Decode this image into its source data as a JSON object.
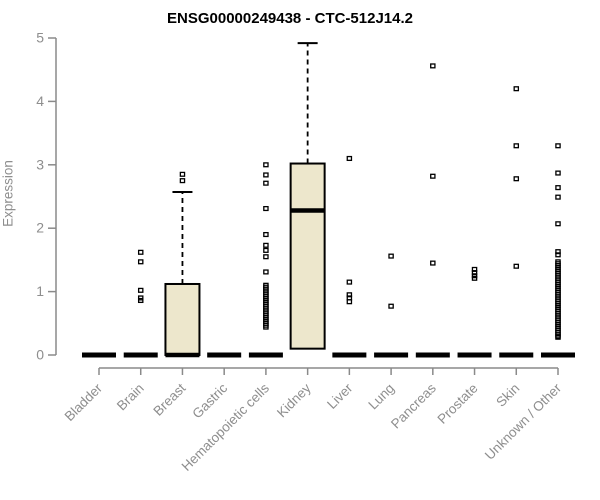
{
  "chart_data": {
    "type": "boxplot",
    "title": "ENSG00000249438 - CTC-512J14.2",
    "xlabel": "",
    "ylabel": "Expression",
    "ylim": [
      0,
      5
    ],
    "yticks": [
      0,
      1,
      2,
      3,
      4,
      5
    ],
    "grid": false,
    "legend": "none",
    "marker": "open-square",
    "colors": {
      "box_fill": "#EDE7CC",
      "box_stroke": "#000000",
      "median": "#000000",
      "outlier": "#000000",
      "axis": "#8a8a8a",
      "tick_label": "#8e8e8e",
      "title": "#000000",
      "background": "#ffffff"
    },
    "categories": [
      {
        "label": "Bladder",
        "q1": 0,
        "median": 0,
        "q3": 0,
        "whisker_low": 0,
        "whisker_high": 0,
        "outliers": []
      },
      {
        "label": "Brain",
        "q1": 0,
        "median": 0,
        "q3": 0,
        "whisker_low": 0,
        "whisker_high": 0,
        "outliers": [
          1.62,
          1.47,
          1.02,
          0.9,
          0.86
        ]
      },
      {
        "label": "Breast",
        "q1": 0,
        "median": 0,
        "q3": 1.12,
        "whisker_low": 0,
        "whisker_high": 2.57,
        "outliers": [
          2.85,
          2.75
        ]
      },
      {
        "label": "Gastric",
        "q1": 0,
        "median": 0,
        "q3": 0,
        "whisker_low": 0,
        "whisker_high": 0,
        "outliers": []
      },
      {
        "label": "Hematopoietic cells",
        "q1": 0,
        "median": 0,
        "q3": 0,
        "whisker_low": 0,
        "whisker_high": 0,
        "outliers": [
          3.0,
          2.84,
          2.71,
          2.31,
          1.9,
          1.73,
          1.65,
          1.55,
          1.31,
          1.1,
          1.07,
          1.04,
          1.01,
          0.98,
          0.95,
          0.92,
          0.89,
          0.86,
          0.83,
          0.8,
          0.77,
          0.74,
          0.71,
          0.68,
          0.65,
          0.62,
          0.59,
          0.56,
          0.53,
          0.5,
          0.47,
          0.44
        ]
      },
      {
        "label": "Kidney",
        "q1": 0.1,
        "median": 2.28,
        "q3": 3.02,
        "whisker_low": 0.1,
        "whisker_high": 4.92,
        "outliers": []
      },
      {
        "label": "Liver",
        "q1": 0,
        "median": 0,
        "q3": 0,
        "whisker_low": 0,
        "whisker_high": 0,
        "outliers": [
          3.1,
          1.15,
          0.95,
          0.9,
          0.84
        ]
      },
      {
        "label": "Lung",
        "q1": 0,
        "median": 0,
        "q3": 0,
        "whisker_low": 0,
        "whisker_high": 0,
        "outliers": [
          1.56,
          0.77
        ]
      },
      {
        "label": "Pancreas",
        "q1": 0,
        "median": 0,
        "q3": 0,
        "whisker_low": 0,
        "whisker_high": 0,
        "outliers": [
          4.56,
          2.82,
          1.45
        ]
      },
      {
        "label": "Prostate",
        "q1": 0,
        "median": 0,
        "q3": 0,
        "whisker_low": 0,
        "whisker_high": 0,
        "outliers": [
          1.35,
          1.3,
          1.25,
          1.21
        ]
      },
      {
        "label": "Skin",
        "q1": 0,
        "median": 0,
        "q3": 0,
        "whisker_low": 0,
        "whisker_high": 0,
        "outliers": [
          4.2,
          3.3,
          2.78,
          1.4
        ]
      },
      {
        "label": "Unknown / Other",
        "q1": 0,
        "median": 0,
        "q3": 0,
        "whisker_low": 0,
        "whisker_high": 0,
        "outliers": [
          3.3,
          2.87,
          2.64,
          2.49,
          2.07,
          1.63,
          1.58,
          1.47,
          1.44,
          1.41,
          1.38,
          1.35,
          1.32,
          1.29,
          1.26,
          1.23,
          1.2,
          1.17,
          1.14,
          1.11,
          1.08,
          1.05,
          1.02,
          0.99,
          0.96,
          0.93,
          0.9,
          0.87,
          0.84,
          0.81,
          0.78,
          0.75,
          0.72,
          0.69,
          0.66,
          0.63,
          0.6,
          0.57,
          0.54,
          0.51,
          0.48,
          0.45,
          0.42,
          0.39,
          0.36,
          0.33,
          0.3,
          0.28
        ]
      }
    ]
  }
}
